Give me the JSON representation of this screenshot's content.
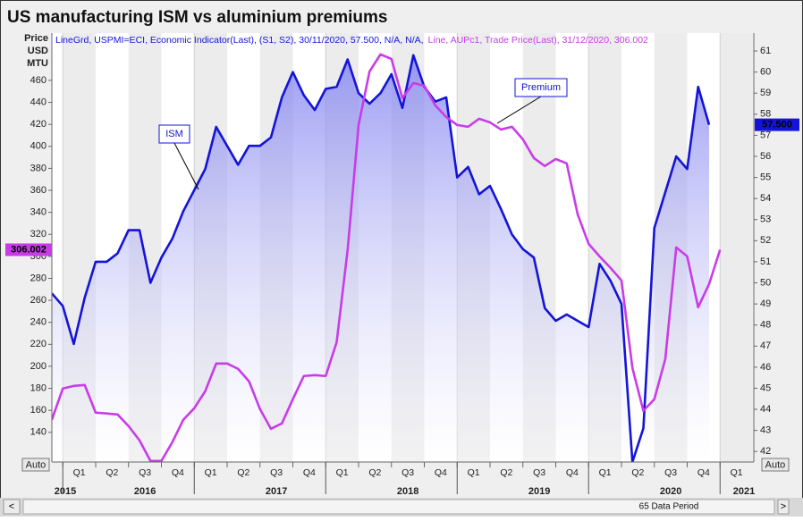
{
  "chart_data": {
    "type": "line",
    "title": "US manufacturing ISM vs aluminium premiums",
    "y_axis_label": [
      "Price",
      "USD",
      "MTU"
    ],
    "scale_mode": "Auto",
    "x_axis": {
      "quarters": [
        "Q1",
        "Q2",
        "Q3",
        "Q4",
        "Q1",
        "Q2",
        "Q3",
        "Q4",
        "Q1",
        "Q2",
        "Q3",
        "Q4",
        "Q1",
        "Q2",
        "Q3",
        "Q4",
        "Q1",
        "Q2",
        "Q3",
        "Q4",
        "Q1"
      ],
      "years": [
        "2015",
        "2016",
        "2017",
        "2018",
        "2019",
        "2020",
        "2021"
      ]
    },
    "footer": "65 Data Period",
    "ylim": [
      113,
      503
    ],
    "yticks": [
      140,
      160,
      180,
      200,
      220,
      240,
      260,
      280,
      300,
      320,
      340,
      360,
      380,
      400,
      420,
      440,
      460
    ],
    "y2lim": [
      41.5,
      61.85
    ],
    "y2ticks": [
      42,
      43,
      44,
      45,
      46,
      47,
      48,
      49,
      50,
      51,
      52,
      53,
      54,
      55,
      56,
      57,
      58,
      59,
      60,
      61
    ],
    "series": [
      {
        "name": "ISM",
        "axis": "y2",
        "color": "#1414d8",
        "legend": "LineGrd, USPMI=ECI, Economic Indicator(Last), (S1, S2), 30/11/2020, 57.500, N/A, N/A,",
        "values": [
          49.5,
          48.9,
          47.1,
          49.3,
          51.0,
          51.0,
          51.4,
          52.5,
          52.5,
          50.0,
          51.2,
          52.1,
          53.4,
          54.4,
          55.4,
          57.4,
          56.5,
          55.6,
          56.5,
          56.5,
          56.9,
          58.8,
          60.0,
          58.9,
          58.2,
          59.2,
          59.3,
          60.6,
          59.0,
          58.5,
          59.0,
          59.9,
          58.3,
          60.8,
          59.3,
          58.6,
          58.8,
          55.0,
          55.5,
          54.2,
          54.6,
          53.5,
          52.3,
          51.6,
          51.2,
          48.8,
          48.2,
          48.5,
          48.2,
          47.9,
          50.9,
          50.1,
          49.0,
          41.5,
          43.1,
          52.6,
          54.3,
          56.0,
          55.4,
          59.3,
          57.5,
          null
        ],
        "value_labels": [
          null,
          null,
          null,
          null,
          null,
          null,
          null,
          null,
          null,
          null,
          null,
          null,
          null,
          null,
          null,
          null,
          null,
          null,
          null,
          null,
          null,
          null,
          null,
          null,
          null,
          null,
          null,
          null,
          null,
          null,
          null,
          null,
          null,
          null,
          null,
          null,
          null,
          null,
          null,
          null,
          null,
          null,
          null,
          null,
          null,
          null,
          null,
          null,
          null,
          null,
          null,
          null,
          null,
          null,
          null,
          null,
          null,
          null,
          null,
          null,
          "57.500",
          null
        ]
      },
      {
        "name": "Premium",
        "color": "#c83ce8",
        "legend": "Line, AUPc1, Trade Price(Last), 31/12/2020, 306.002",
        "values": [
          151.4,
          179.8,
          182.2,
          183.0,
          157.9,
          157.1,
          156.2,
          145.7,
          132.7,
          114.0,
          114.0,
          131.1,
          151.4,
          161.9,
          177.4,
          202.5,
          202.5,
          197.7,
          186.3,
          161.1,
          143.2,
          148.1,
          170.1,
          191.2,
          192.0,
          191.2,
          222.0,
          305.7,
          419.4,
          468.1,
          483.6,
          479.5,
          443.8,
          457.6,
          455.1,
          437.3,
          426.7,
          419.4,
          417.8,
          425.1,
          421.8,
          415.3,
          417.8,
          406.4,
          389.4,
          382.1,
          388.5,
          384.5,
          338.2,
          311.4,
          300.0,
          289.5,
          278.1,
          198.5,
          159.5,
          170.1,
          206.6,
          308.1,
          300.0,
          253.7,
          274.8,
          306.002
        ]
      }
    ]
  }
}
